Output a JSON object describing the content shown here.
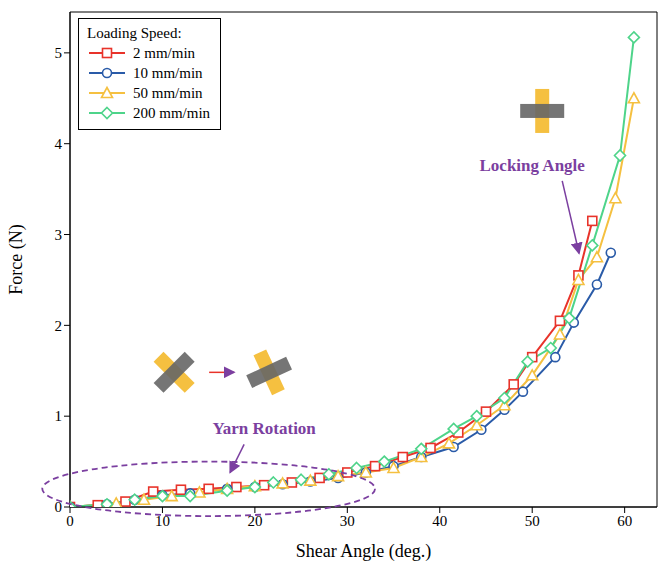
{
  "chart_data": {
    "type": "line",
    "x_label": "Shear Angle (deg.)",
    "y_label": "Force (N)",
    "legend_title": "Loading Speed:",
    "legend": "upper left",
    "xlim": [
      0,
      63.5
    ],
    "ylim": [
      0,
      5.45
    ],
    "xticks": [
      0,
      10,
      20,
      30,
      40,
      50,
      60
    ],
    "yticks": [
      0,
      1,
      2,
      3,
      4,
      5
    ],
    "annotations": [
      {
        "text": "Yarn Rotation",
        "x": 21,
        "y": 0.8
      },
      {
        "text": "Locking Angle",
        "x": 50,
        "y": 3.7
      }
    ],
    "series": [
      {
        "name": "2 mm/min",
        "color": "#e8332a",
        "marker": "square",
        "x": [
          0,
          3,
          6,
          9,
          12,
          15,
          18,
          21,
          24,
          27,
          30,
          33,
          36,
          39,
          42,
          45,
          48,
          50,
          53,
          55,
          56.5
        ],
        "values": [
          0,
          0.02,
          0.06,
          0.17,
          0.19,
          0.2,
          0.22,
          0.24,
          0.27,
          0.32,
          0.38,
          0.45,
          0.55,
          0.65,
          0.82,
          1.05,
          1.35,
          1.65,
          2.05,
          2.55,
          3.15
        ]
      },
      {
        "name": "10 mm/min",
        "color": "#2a5ba8",
        "marker": "circle",
        "x": [
          0,
          4,
          7,
          10,
          13,
          17,
          20,
          23,
          26,
          29,
          32,
          35,
          38,
          41.5,
          44.5,
          47,
          49,
          52.5,
          54.5,
          57,
          58.5
        ],
        "values": [
          0,
          0.03,
          0.08,
          0.13,
          0.15,
          0.2,
          0.22,
          0.25,
          0.28,
          0.32,
          0.38,
          0.45,
          0.55,
          0.66,
          0.85,
          1.07,
          1.27,
          1.65,
          2.03,
          2.45,
          2.8
        ]
      },
      {
        "name": "50 mm/min",
        "color": "#f5c040",
        "marker": "triangle",
        "x": [
          0,
          5,
          8,
          11,
          14,
          17,
          20,
          23,
          26,
          29,
          32,
          35,
          38,
          41,
          44,
          47,
          50,
          53,
          55,
          57,
          59,
          61
        ],
        "values": [
          0,
          0.04,
          0.08,
          0.12,
          0.16,
          0.2,
          0.23,
          0.26,
          0.29,
          0.34,
          0.38,
          0.43,
          0.55,
          0.7,
          0.9,
          1.12,
          1.45,
          1.9,
          2.5,
          2.75,
          3.4,
          4.5
        ]
      },
      {
        "name": "200 mm/min",
        "color": "#4ed48a",
        "marker": "diamond",
        "x": [
          0,
          4,
          7,
          10,
          13,
          17,
          20,
          22,
          25,
          28,
          31,
          34,
          38,
          41.5,
          44,
          47,
          49.5,
          52,
          54,
          56.5,
          59.5,
          61
        ],
        "values": [
          0,
          0.03,
          0.08,
          0.12,
          0.12,
          0.18,
          0.22,
          0.27,
          0.3,
          0.36,
          0.43,
          0.5,
          0.64,
          0.86,
          1,
          1.2,
          1.6,
          1.75,
          2.08,
          2.88,
          3.87,
          5.17
        ]
      }
    ]
  }
}
